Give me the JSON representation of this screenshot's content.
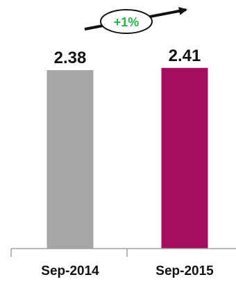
{
  "chart_data": {
    "type": "bar",
    "categories": [
      "Sep-2014",
      "Sep-2015"
    ],
    "values": [
      2.38,
      2.41
    ],
    "value_labels": [
      "2.38",
      "2.41"
    ],
    "bar_colors": [
      "#a6a6a6",
      "#a50d5e"
    ],
    "change_label": "+1%",
    "change_color": "#2bb34a",
    "axis_color": "#a0a0a0",
    "arrow_color": "#111111",
    "title": "",
    "xlabel": "",
    "ylabel": "",
    "grid": false
  }
}
